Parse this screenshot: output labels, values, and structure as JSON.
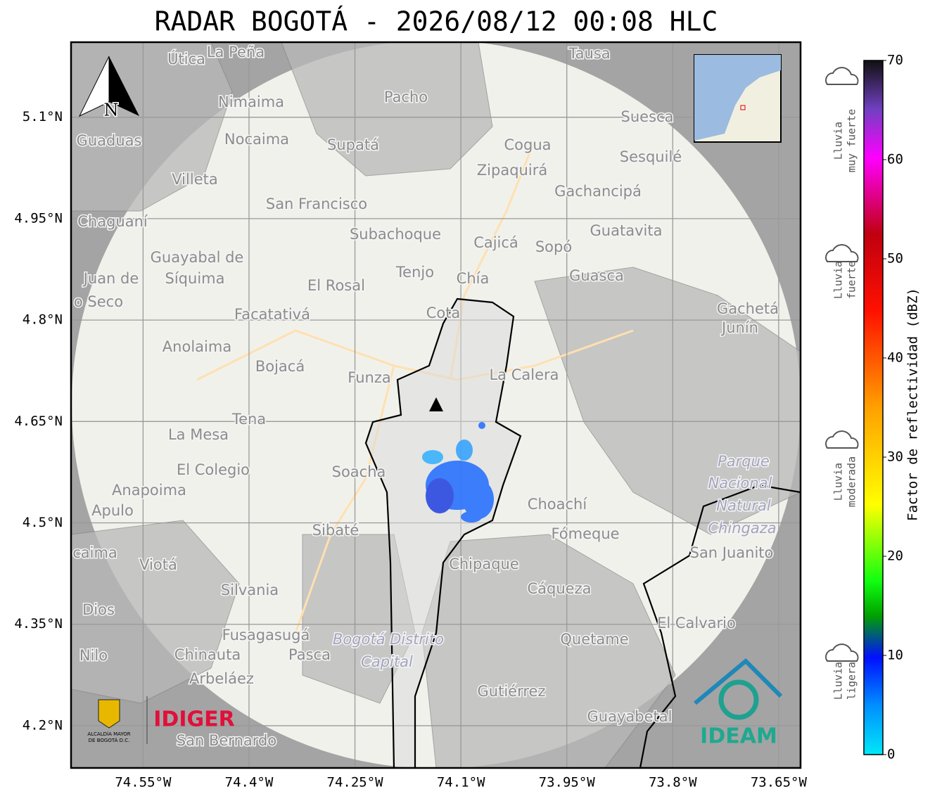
{
  "title": "RADAR BOGOTÁ - 2026/08/12 00:08 HLC",
  "map": {
    "latlim": [
      4.1375,
      5.211
    ],
    "lonlim": [
      -74.652,
      -73.619
    ],
    "lat_ticks": [
      {
        "value": 5.1,
        "label": "5.1°N"
      },
      {
        "value": 4.95,
        "label": "4.95°N"
      },
      {
        "value": 4.8,
        "label": "4.8°N"
      },
      {
        "value": 4.65,
        "label": "4.65°N"
      },
      {
        "value": 4.5,
        "label": "4.5°N"
      },
      {
        "value": 4.35,
        "label": "4.35°N"
      },
      {
        "value": 4.2,
        "label": "4.2°N"
      }
    ],
    "lon_ticks": [
      {
        "value": -74.55,
        "label": "74.55°W"
      },
      {
        "value": -74.4,
        "label": "74.4°W"
      },
      {
        "value": -74.25,
        "label": "74.25°W"
      },
      {
        "value": -74.1,
        "label": "74.1°W"
      },
      {
        "value": -73.95,
        "label": "73.95°W"
      },
      {
        "value": -73.8,
        "label": "73.8°W"
      },
      {
        "value": -73.65,
        "label": "73.65°W"
      }
    ],
    "north_label": "N",
    "places": [
      "La Peña",
      "Útica",
      "Tausa",
      "Pacho",
      "Nimaima",
      "Guaduas",
      "Nocaima",
      "Supatá",
      "Cogua",
      "Suesca",
      "Zipaquirá",
      "Sesquilé",
      "Villeta",
      "Gachancipá",
      "San Francisco",
      "Chaguaní",
      "Guatavita",
      "Subachoque",
      "Cajicá",
      "Sopó",
      "Guayabal de",
      "Síquima",
      "Juan de",
      "o Seco",
      "Tenjo",
      "Chía",
      "El Rosal",
      "Guasca",
      "Cota",
      "Facatativá",
      "Gachetá",
      "Junín",
      "Anolaima",
      "Bojacá",
      "Funza",
      "La Calera",
      "Tena",
      "La Mesa",
      "Soacha",
      "El Colegio",
      "Anapoima",
      "Apulo",
      "Choachí",
      "Sibaté",
      "Fómeque",
      "San Juanito",
      "caima",
      "Viotá",
      "Chipaque",
      "Cáqueza",
      "Silvania",
      "Dios",
      "El Calvario",
      "Fusagasugá",
      "Quetame",
      "Pasca",
      "Chinauta",
      "Nilo",
      "Arbeláez",
      "Gutiérrez",
      "Guayabetal",
      "San Bernardo"
    ],
    "italic_places": [
      "Parque",
      "Nacional",
      "Natural",
      "Chingaza",
      "Bogotá Distrito",
      "Capital"
    ]
  },
  "colorbar": {
    "label": "Factor de reflectividad (dBZ)",
    "lim": [
      0,
      70
    ],
    "ticks": [
      0,
      10,
      20,
      30,
      40,
      50,
      60,
      70
    ],
    "categories": [
      {
        "lines": [
          "Lluvia",
          "muy fuerte"
        ]
      },
      {
        "lines": [
          "Lluvia",
          "fuerte"
        ]
      },
      {
        "lines": [
          "Lluvia",
          "moderada"
        ]
      },
      {
        "lines": [
          "Lluvia",
          "ligera"
        ]
      }
    ]
  },
  "logos": {
    "idiger": "IDIGER",
    "alcaldia": [
      "ALCALDÍA MAYOR",
      "DE BOGOTÁ D.C."
    ],
    "ideam": "IDEAM"
  }
}
